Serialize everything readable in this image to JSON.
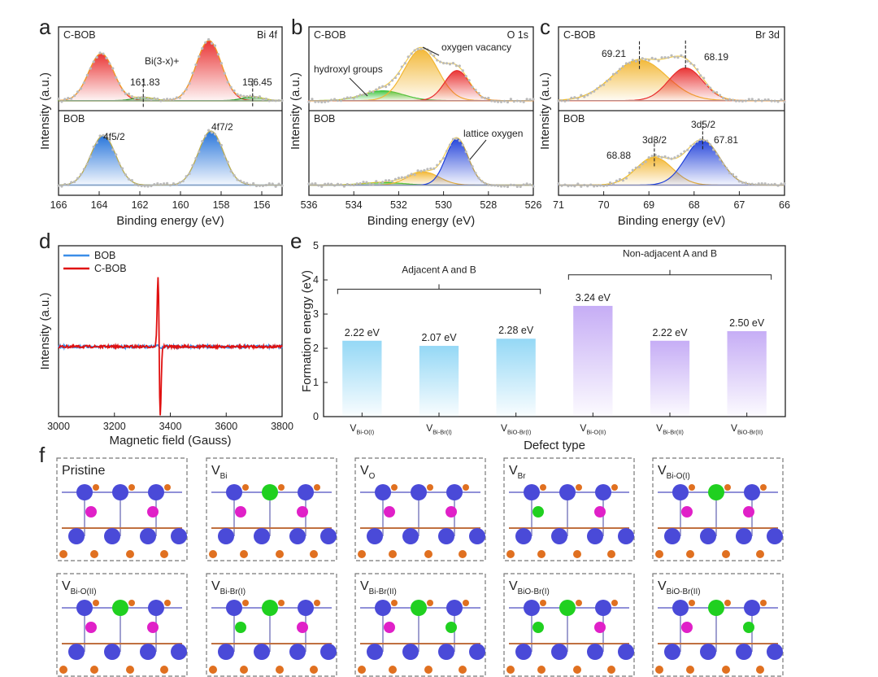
{
  "panel_labels": [
    "a",
    "b",
    "c",
    "d",
    "e",
    "f"
  ],
  "chart_data": [
    {
      "id": "a",
      "type": "line",
      "title": "Bi 4f",
      "xlabel": "Binding energy (eV)",
      "ylabel": "Intensity (a.u.)",
      "xlim": [
        166,
        155
      ],
      "xticks": [
        166,
        164,
        162,
        160,
        158,
        156
      ],
      "subpanels": [
        {
          "label": "C-BOB",
          "peaks": [
            {
              "center": 163.9,
              "height": 0.72,
              "width": 0.62,
              "color": "#e82b2b"
            },
            {
              "center": 161.83,
              "height": 0.05,
              "width": 0.5,
              "color": "#2ca02c"
            },
            {
              "center": 158.6,
              "height": 0.92,
              "width": 0.62,
              "color": "#e82b2b"
            },
            {
              "center": 156.45,
              "height": 0.06,
              "width": 0.5,
              "color": "#2ca02c"
            }
          ],
          "annotations": [
            "Bi(3-x)+",
            "161.83",
            "156.45"
          ],
          "dashed_markers": [
            161.83,
            156.45
          ]
        },
        {
          "label": "BOB",
          "peaks": [
            {
              "center": 163.8,
              "height": 0.75,
              "width": 0.62,
              "color": "#1e6fd9"
            },
            {
              "center": 158.5,
              "height": 0.82,
              "width": 0.62,
              "color": "#1e6fd9"
            }
          ],
          "annotations": [
            "4f5/2",
            "4f7/2"
          ]
        }
      ]
    },
    {
      "id": "b",
      "type": "line",
      "title": "O 1s",
      "xlabel": "Binding energy (eV)",
      "ylabel": "Intensity (a.u.)",
      "xlim": [
        536,
        526
      ],
      "xticks": [
        536,
        534,
        532,
        530,
        528,
        526
      ],
      "subpanels": [
        {
          "label": "C-BOB",
          "peaks": [
            {
              "center": 532.7,
              "height": 0.15,
              "width": 0.9,
              "color": "#3cc43c"
            },
            {
              "center": 531.0,
              "height": 0.78,
              "width": 0.75,
              "color": "#f2b632"
            },
            {
              "center": 529.4,
              "height": 0.46,
              "width": 0.55,
              "color": "#e82b2b"
            }
          ],
          "annotations": [
            "hydroxyl groups",
            "oxygen vacancy"
          ]
        },
        {
          "label": "BOB",
          "peaks": [
            {
              "center": 532.7,
              "height": 0.04,
              "width": 0.9,
              "color": "#3cc43c"
            },
            {
              "center": 530.9,
              "height": 0.2,
              "width": 0.7,
              "color": "#f2b632"
            },
            {
              "center": 529.4,
              "height": 0.7,
              "width": 0.5,
              "color": "#1e3fd9"
            }
          ],
          "annotations": [
            "lattice oxygen"
          ]
        }
      ]
    },
    {
      "id": "c",
      "type": "line",
      "title": "Br 3d",
      "xlabel": "Binding energy (eV)",
      "ylabel": "Intensity (a.u.)",
      "xlim": [
        71,
        66
      ],
      "xticks": [
        71,
        70,
        69,
        68,
        67,
        66
      ],
      "subpanels": [
        {
          "label": "C-BOB",
          "peaks": [
            {
              "center": 69.21,
              "height": 0.62,
              "width": 0.6,
              "color": "#f2b632"
            },
            {
              "center": 68.19,
              "height": 0.5,
              "width": 0.38,
              "color": "#e82b2b"
            }
          ],
          "annotations": [
            "69.21",
            "68.19"
          ],
          "dashed_markers": [
            69.21,
            68.19
          ]
        },
        {
          "label": "BOB",
          "peaks": [
            {
              "center": 68.88,
              "height": 0.42,
              "width": 0.4,
              "color": "#f2b632"
            },
            {
              "center": 67.81,
              "height": 0.68,
              "width": 0.38,
              "color": "#1e3fd9"
            }
          ],
          "annotations": [
            "3d3/2",
            "68.88",
            "3d5/2",
            "67.81"
          ],
          "dashed_markers": [
            68.88,
            67.81
          ]
        }
      ]
    },
    {
      "id": "d",
      "type": "line",
      "xlabel": "Magnetic field (Gauss)",
      "ylabel": "Intensity (a.u.)",
      "xlim": [
        3000,
        3800
      ],
      "xticks": [
        3000,
        3200,
        3400,
        3600,
        3800
      ],
      "series": [
        {
          "name": "BOB",
          "color": "#3b8ee8",
          "signal_peak": 3360,
          "amplitude": 0.02
        },
        {
          "name": "C-BOB",
          "color": "#e01010",
          "signal_peak": 3360,
          "amplitude": 1.0
        }
      ]
    },
    {
      "id": "e",
      "type": "bar",
      "xlabel": "Defect type",
      "ylabel": "Formation energy (eV)",
      "ylim": [
        0,
        5
      ],
      "yticks": [
        0,
        1,
        2,
        3,
        4,
        5
      ],
      "categories": [
        {
          "main": "V",
          "sub": "Bi-O(I)"
        },
        {
          "main": "V",
          "sub": "Bi-Br(I)"
        },
        {
          "main": "V",
          "sub": "BiO-Br(I)"
        },
        {
          "main": "V",
          "sub": "Bi-O(II)"
        },
        {
          "main": "V",
          "sub": "Bi-Br(II)"
        },
        {
          "main": "V",
          "sub": "BiO-Br(II)"
        }
      ],
      "values": [
        2.22,
        2.07,
        2.28,
        3.24,
        2.22,
        2.5
      ],
      "value_labels": [
        "2.22 eV",
        "2.07 eV",
        "2.28 eV",
        "3.24 eV",
        "2.22 eV",
        "2.50 eV"
      ],
      "bar_colors": [
        "#8fd6f5",
        "#8fd6f5",
        "#8fd6f5",
        "#c3a9f5",
        "#c3a9f5",
        "#c3a9f5"
      ],
      "group_labels": [
        "Adjacent A and B",
        "Non-adjacent A and B"
      ]
    }
  ],
  "structures": [
    {
      "main": "Pristine",
      "sub": ""
    },
    {
      "main": "V",
      "sub": "Bi"
    },
    {
      "main": "V",
      "sub": "O"
    },
    {
      "main": "V",
      "sub": "Br"
    },
    {
      "main": "V",
      "sub": "Bi-O(I)"
    },
    {
      "main": "V",
      "sub": "Bi-O(II)"
    },
    {
      "main": "V",
      "sub": "Bi-Br(I)"
    },
    {
      "main": "V",
      "sub": "Bi-Br(II)"
    },
    {
      "main": "V",
      "sub": "BiO-Br(I)"
    },
    {
      "main": "V",
      "sub": "BiO-Br(II)"
    }
  ],
  "atom_colors": {
    "bi": "#4a4ad8",
    "o": "#e07020",
    "br": "#e020c8",
    "vac": "#20d020"
  }
}
